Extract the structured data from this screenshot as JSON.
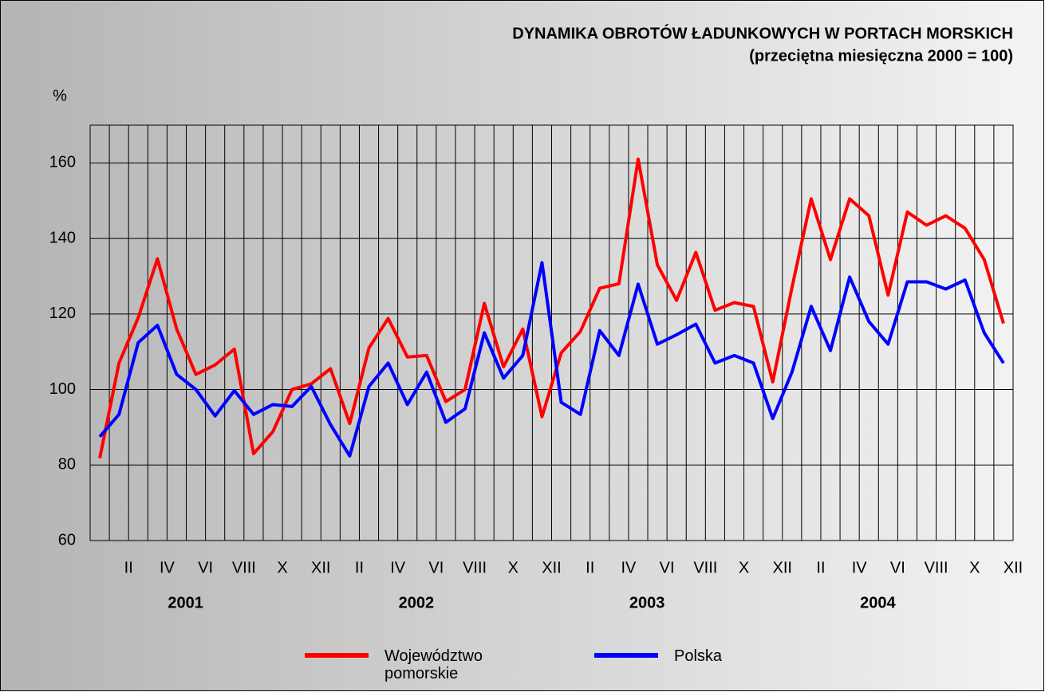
{
  "chart_data": {
    "type": "line",
    "title": "DYNAMIKA OBROTÓW ŁADUNKOWYCH W PORTACH MORSKICH",
    "subtitle": "(przeciętna miesięczna 2000 = 100)",
    "y_label": "%",
    "categories": [
      null,
      "II",
      null,
      "IV",
      null,
      "VI",
      null,
      "VIII",
      null,
      "X",
      null,
      "XII",
      null,
      "II",
      null,
      "IV",
      null,
      "VI",
      null,
      "VIII",
      null,
      "X",
      null,
      "XII",
      null,
      "II",
      null,
      "IV",
      null,
      "VI",
      null,
      "VIII",
      null,
      "X",
      null,
      "XII",
      null,
      "II",
      null,
      "IV",
      null,
      "VI",
      null,
      "VIII",
      null,
      "X",
      null,
      "XII"
    ],
    "year_labels": [
      "2001",
      "2002",
      "2003",
      "2004"
    ],
    "series": [
      {
        "name": "Województwo pomorskie",
        "color": "#ff0000",
        "values": [
          81.8,
          107,
          119,
          134.6,
          116,
          104,
          106.5,
          110.7,
          83,
          88.8,
          100,
          101.5,
          105.5,
          91,
          111,
          118.8,
          108.6,
          109,
          96.8,
          100,
          122.8,
          106,
          116,
          92.8,
          109.7,
          115.4,
          126.8,
          128,
          161,
          133,
          123.6,
          136.3,
          121,
          123,
          122,
          102,
          127,
          150.5,
          134.4,
          150.5,
          146,
          125,
          147,
          143.5,
          146,
          142.7,
          134.4,
          117.5
        ]
      },
      {
        "name": "Polska",
        "color": "#0000ff",
        "values": [
          87.5,
          93.4,
          112.4,
          117,
          104,
          100,
          93,
          99.7,
          93.4,
          96,
          95.5,
          100.8,
          90.7,
          82.4,
          100.8,
          107,
          96,
          104.6,
          91.3,
          94.9,
          115,
          103,
          109,
          133.6,
          96.6,
          93.4,
          115.6,
          109,
          127.9,
          112,
          114.5,
          117.3,
          107,
          109,
          107,
          92.3,
          104.6,
          122,
          110.3,
          129.8,
          118,
          112,
          128.5,
          128.5,
          126.6,
          129,
          115,
          107
        ]
      }
    ],
    "ylim": [
      60,
      170
    ],
    "yticks": [
      60,
      80,
      100,
      120,
      140,
      160
    ],
    "grid": true
  }
}
